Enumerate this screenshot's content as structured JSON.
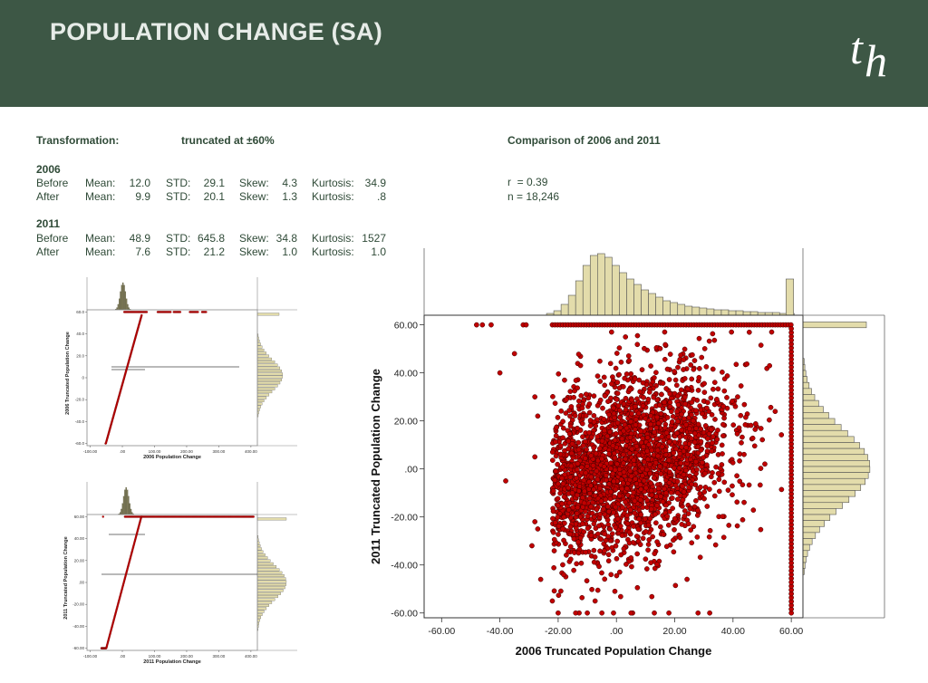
{
  "header": {
    "title": "POPULATION CHANGE (SA)",
    "logo_t": "t",
    "logo_h": "h"
  },
  "stats": {
    "transformation_label": "Transformation:",
    "transformation_value": "truncated at ±60%",
    "comparison_title": "Comparison of 2006 and 2011",
    "r": "r  = 0.39",
    "n": "n = 18,246",
    "labels": {
      "mean": "Mean:",
      "std": "STD:",
      "skew": "Skew:",
      "kurtosis": "Kurtosis:"
    },
    "years": [
      {
        "year": "2006",
        "rows": [
          {
            "label": "Before",
            "mean": "12.0",
            "std": "29.1",
            "skew": "4.3",
            "kurtosis": "34.9"
          },
          {
            "label": "After",
            "mean": "9.9",
            "std": "20.1",
            "skew": "1.3",
            "kurtosis": ".8"
          }
        ]
      },
      {
        "year": "2011",
        "rows": [
          {
            "label": "Before",
            "mean": "48.9",
            "std": "645.8",
            "skew": "34.8",
            "kurtosis": "1527"
          },
          {
            "label": "After",
            "mean": "7.6",
            "std": "21.2",
            "skew": "1.0",
            "kurtosis": "1.0"
          }
        ]
      }
    ]
  },
  "colors": {
    "header_bg": "#3d5745",
    "text": "#2f4a37",
    "point": "#c00000",
    "hist_fill": "#e3dcab",
    "hist_fill_dark": "#7d7a58"
  },
  "chart_data": [
    {
      "type": "scatter",
      "xlabel": "2006 Population Change",
      "ylabel": "2006 Truncated Population Change",
      "xticks": [
        "-100.00",
        ".00",
        "100.00",
        "200.00",
        "300.00",
        "400.00"
      ],
      "yticks": [
        "60.0",
        "40.0",
        "20.0",
        "0",
        "-20.0",
        "-40.0",
        "-60.0"
      ],
      "xlim": [
        -110,
        420
      ],
      "ylim": [
        -62,
        62
      ],
      "marginal_histograms": true
    },
    {
      "type": "scatter",
      "xlabel": "2011 Population Change",
      "ylabel": "2011 Truncated Population Change",
      "xticks": [
        "-100.00",
        ".00",
        "100.00",
        "200.00",
        "300.00",
        "400.00"
      ],
      "yticks": [
        "60.00",
        "40.00",
        "20.00",
        ".00",
        "-20.00",
        "-40.00",
        "-60.00"
      ],
      "xlim": [
        -110,
        420
      ],
      "ylim": [
        -62,
        62
      ],
      "marginal_histograms": true
    },
    {
      "type": "scatter",
      "xlabel": "2006 Truncated Population Change",
      "ylabel": "2011 Truncated Population Change",
      "xticks": [
        "-60.00",
        "-40.00",
        "-20.00",
        ".00",
        "20.00",
        "40.00",
        "60.00"
      ],
      "yticks": [
        "60.00",
        "40.00",
        "20.00",
        ".00",
        "-20.00",
        "-40.00",
        "-60.00"
      ],
      "xlim": [
        -66,
        64
      ],
      "ylim": [
        -62,
        64
      ],
      "r": 0.39,
      "n": 18246,
      "marginal_histograms": true
    }
  ]
}
